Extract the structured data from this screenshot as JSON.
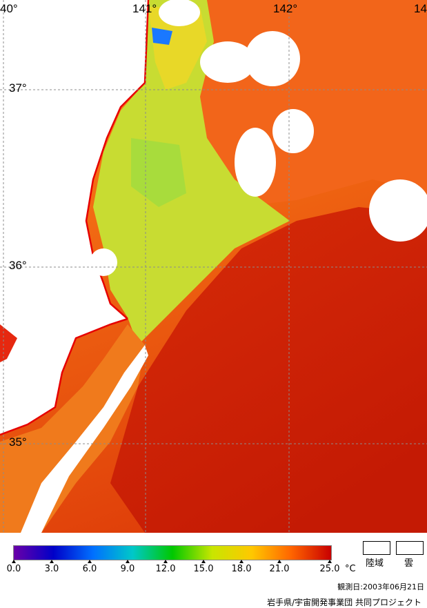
{
  "map": {
    "longitude_labels": [
      "40°",
      "141°",
      "142°",
      "14"
    ],
    "latitude_labels": [
      "37°",
      "36°",
      "35°"
    ]
  },
  "colorbar": {
    "ticks": [
      "0.0",
      "3.0",
      "6.0",
      "9.0",
      "12.0",
      "15.0",
      "18.0",
      "21.0",
      "25.0"
    ],
    "unit": "°C",
    "colors": [
      "#6a00a8",
      "#0000c8",
      "#0070ff",
      "#00c8c8",
      "#00c800",
      "#c8e600",
      "#ffc800",
      "#ff6400",
      "#c80000"
    ]
  },
  "legend": {
    "land_label": "陸域",
    "cloud_label": "雲"
  },
  "footer": {
    "observation_date": "観測日:2003年06月21日",
    "credit": "岩手県/宇宙開発事業団 共同プロジェクト"
  }
}
